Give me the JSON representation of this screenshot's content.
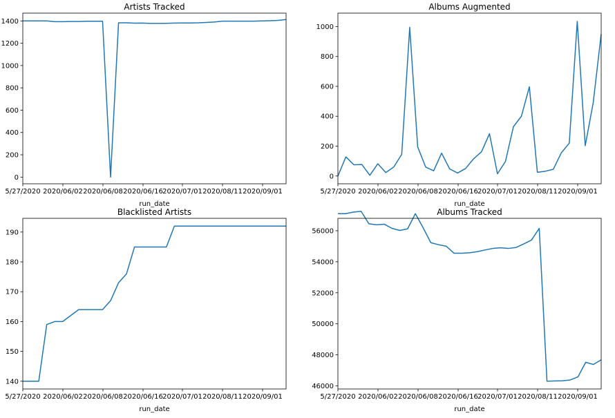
{
  "series_color": "#1f77b4",
  "chart_data": [
    {
      "type": "line",
      "title": "Artists Tracked",
      "xlabel": "run_date",
      "ylabel": "",
      "grid": false,
      "x_ticks": [
        "5/27/2020",
        "2020/06/02",
        "2020/06/08",
        "2020/06/16",
        "2020/07/01",
        "2020/08/11",
        "2020/09/01"
      ],
      "y_ticks": [
        0,
        200,
        400,
        600,
        800,
        1000,
        1200,
        1400
      ],
      "ylim": [
        -60,
        1470
      ],
      "values": [
        1400,
        1400,
        1400,
        1400,
        1393,
        1393,
        1395,
        1395,
        1397,
        1397,
        1397,
        0,
        1383,
        1383,
        1380,
        1381,
        1378,
        1378,
        1379,
        1381,
        1382,
        1382,
        1383,
        1386,
        1390,
        1398,
        1398,
        1398,
        1398,
        1398,
        1400,
        1402,
        1405,
        1413
      ]
    },
    {
      "type": "line",
      "title": "Albums Augmented",
      "xlabel": "run_date",
      "ylabel": "",
      "grid": false,
      "x_ticks": [
        "5/27/2020",
        "2020/06/02",
        "2020/06/08",
        "2020/06/16",
        "2020/07/01",
        "2020/08/11",
        "2020/09/01"
      ],
      "y_ticks": [
        0,
        200,
        400,
        600,
        800,
        1000
      ],
      "ylim": [
        -52,
        1090
      ],
      "values": [
        0,
        128,
        75,
        77,
        5,
        82,
        23,
        60,
        145,
        995,
        195,
        60,
        35,
        153,
        48,
        20,
        50,
        115,
        162,
        283,
        15,
        97,
        330,
        400,
        597,
        25,
        32,
        45,
        155,
        220,
        1035,
        203,
        490,
        950
      ]
    },
    {
      "type": "line",
      "title": "Blacklisted Artists",
      "xlabel": "run_date",
      "ylabel": "",
      "grid": false,
      "x_ticks": [
        "5/27/2020",
        "2020/06/02",
        "2020/06/08",
        "2020/06/16",
        "2020/07/01",
        "2020/08/11",
        "2020/09/01"
      ],
      "y_ticks": [
        140,
        150,
        160,
        170,
        180,
        190
      ],
      "ylim": [
        137.4,
        194.6
      ],
      "values": [
        140,
        140,
        140,
        159,
        160,
        160,
        162,
        164,
        164,
        164,
        164,
        167,
        173,
        176,
        185,
        185,
        185,
        185,
        185,
        192,
        192,
        192,
        192,
        192,
        192,
        192,
        192,
        192,
        192,
        192,
        192,
        192,
        192,
        192
      ]
    },
    {
      "type": "line",
      "title": "Albums Tracked",
      "xlabel": "run_date",
      "ylabel": "",
      "grid": false,
      "x_ticks": [
        "5/27/2020",
        "2020/06/02",
        "2020/06/08",
        "2020/06/16",
        "2020/07/01",
        "2020/08/11",
        "2020/09/01"
      ],
      "y_ticks": [
        46000,
        48000,
        50000,
        52000,
        54000,
        56000
      ],
      "ylim": [
        45800,
        56800
      ],
      "values": [
        57100,
        57100,
        57200,
        57250,
        56450,
        56380,
        56420,
        56150,
        56020,
        56120,
        57100,
        56200,
        55230,
        55100,
        55000,
        54550,
        54550,
        54580,
        54650,
        54760,
        54860,
        54900,
        54860,
        54920,
        55150,
        55400,
        56150,
        46300,
        46320,
        46330,
        46380,
        46580,
        47520,
        47380,
        47680
      ]
    }
  ]
}
